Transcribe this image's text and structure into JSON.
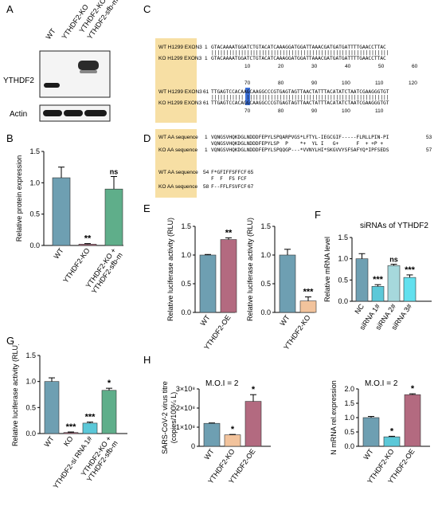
{
  "panels": {
    "A": "A",
    "B": "B",
    "C": "C",
    "D": "D",
    "E": "E",
    "F": "F",
    "G": "G",
    "H": "H"
  },
  "blot": {
    "lanes": [
      "WT",
      "YTHDF2-KO",
      "YTHDF2-KO +\nYTHDF2-sfb-m"
    ],
    "lane_labels": [
      "WT",
      "YTHDF2-KO",
      "YTHDF2-KO +",
      "YTHDF2-sfb-m"
    ],
    "bands": [
      "YTHDF2",
      "Actin"
    ]
  },
  "chart_data": [
    {
      "id": "B",
      "type": "bar",
      "categories": [
        "WT",
        "YTHDF2-KO",
        "YTHDF2-KO +\nYTHDF2-sfb-m"
      ],
      "values": [
        1.08,
        0.02,
        0.9
      ],
      "errors": [
        0.17,
        0.01,
        0.2
      ],
      "significance": [
        "",
        "**",
        "ns"
      ],
      "ylabel": "Relative protein expression",
      "ylim": [
        0,
        1.5
      ],
      "yticks": [
        "0.0",
        "0.5",
        "1.0",
        "1.5"
      ],
      "colors": [
        "#6e9fb2",
        "#b36a80",
        "#5fae8a"
      ]
    },
    {
      "id": "E1",
      "type": "bar",
      "categories": [
        "WT",
        "YTHDF2-OE"
      ],
      "values": [
        1.0,
        1.27
      ],
      "errors": [
        0.01,
        0.03
      ],
      "significance": [
        "",
        "**"
      ],
      "ylabel": "Relative luciferase activity (RLU)",
      "ylim": [
        0,
        1.5
      ],
      "yticks": [
        "0.0",
        "0.5",
        "1.0",
        "1.5"
      ],
      "colors": [
        "#6e9fb2",
        "#b36a80"
      ]
    },
    {
      "id": "E2",
      "type": "bar",
      "categories": [
        "WT",
        "YTHDF2-KO"
      ],
      "values": [
        1.0,
        0.2
      ],
      "errors": [
        0.1,
        0.07
      ],
      "significance": [
        "",
        "***"
      ],
      "ylabel": "Relative luciferase activity (RLU)",
      "ylim": [
        0,
        1.5
      ],
      "yticks": [
        "0.0",
        "0.5",
        "1.0",
        "1.5"
      ],
      "colors": [
        "#6e9fb2",
        "#f2c39c"
      ]
    },
    {
      "id": "F",
      "type": "bar",
      "title": "siRNAs of YTHDF2",
      "categories": [
        "NC",
        "siRNA 1#",
        "siRNA 2#",
        "siRNA 3#"
      ],
      "values": [
        1.0,
        0.35,
        0.84,
        0.56
      ],
      "errors": [
        0.12,
        0.04,
        0.03,
        0.06
      ],
      "significance": [
        "",
        "***",
        "ns",
        "***"
      ],
      "ylabel": "Relative mRNA level",
      "ylim": [
        0,
        1.5
      ],
      "yticks": [
        "0.0",
        "0.5",
        "1.0",
        "1.5"
      ],
      "colors": [
        "#6e9fb2",
        "#5bc8d8",
        "#a6d8dc",
        "#62e0ee"
      ]
    },
    {
      "id": "G",
      "type": "bar",
      "categories": [
        "WT",
        "KO",
        "YTHDF2-si RNA 1#",
        "YTHDF2-KO +\nYTHDF2-sfb-m"
      ],
      "values": [
        1.0,
        0.02,
        0.2,
        0.83
      ],
      "errors": [
        0.07,
        0.01,
        0.02,
        0.04
      ],
      "significance": [
        "",
        "***",
        "***",
        "*"
      ],
      "ylabel": "Relative luciferase activity (RLU)",
      "ylim": [
        0,
        1.5
      ],
      "yticks": [
        "0.0",
        "0.5",
        "1.0",
        "1.5"
      ],
      "colors": [
        "#6e9fb2",
        "#b36a80",
        "#5bc8d8",
        "#5fae8a"
      ]
    },
    {
      "id": "H1",
      "type": "bar",
      "title": "M.O.I = 2",
      "categories": [
        "WT",
        "YTHDF2-KO",
        "YTHDF2-OE"
      ],
      "values": [
        120000000.0,
        60000000.0,
        235000000.0
      ],
      "errors": [
        2000000.0,
        2000000.0,
        35000000.0
      ],
      "significance": [
        "",
        "*",
        "*"
      ],
      "ylabel": "SARS-CoV-2 virus titre (copies/100¼ L)",
      "ylim": [
        0,
        300000000.0
      ],
      "yticks": [
        "0",
        "1×10⁸",
        "2×10⁸",
        "3×10⁸"
      ],
      "colors": [
        "#6e9fb2",
        "#f2c39c",
        "#b36a80"
      ]
    },
    {
      "id": "H2",
      "type": "bar",
      "title": "M.O.I = 2",
      "categories": [
        "WT",
        "YTHDF2-KO",
        "YTHDF2-OE"
      ],
      "values": [
        1.0,
        0.33,
        1.8
      ],
      "errors": [
        0.04,
        0.02,
        0.03
      ],
      "significance": [
        "",
        "*",
        "*"
      ],
      "ylabel": "N mRNA rel.expression",
      "ylim": [
        0,
        2.0
      ],
      "yticks": [
        "0.0",
        "0.5",
        "1.0",
        "1.5",
        "2.0"
      ],
      "colors": [
        "#6e9fb2",
        "#5bc8d8",
        "#b36a80"
      ]
    }
  ],
  "alignment_C": {
    "rows": [
      {
        "label": "WT H1299 EXON3",
        "start": "1",
        "seq": "GTACAAAATGGATCTGTACATCAAAGGATGGATTAAACGATGATGATTTTGAACCTTAC"
      },
      {
        "label": "KO H1299 EXON3",
        "start": "1",
        "seq": "GTACAAAATGGATCTGTACATCAAAGGATGGATTAAACGATGATGATTTTGAACCTTAC"
      },
      {
        "label": "WT H1299 EXON3",
        "start": "61",
        "seq": "TTGAGTCCACAAGCAAGGCCCGTGAGTAGTTAACTATTTACATATCTAATCGAAGGGTGT"
      },
      {
        "label": "KO H1299 EXON3",
        "start": "61",
        "seq": "TTGAGTCCACAGGCAAGGCCCGTGAGTAGTTAACTATTTACATATCTAATCGAAGGGTGT"
      }
    ],
    "ticks_top": [
      "10",
      "20",
      "30",
      "40",
      "50",
      "60"
    ],
    "ticks_mid": [
      "70",
      "80",
      "90",
      "100",
      "110",
      "120"
    ],
    "ticks_bot": [
      "70",
      "80",
      "90",
      "100",
      "110"
    ]
  },
  "alignment_D": {
    "rows": [
      {
        "label": "WT AA sequence",
        "start": "1",
        "seq": "VQNGSVHQKDGLNDDDFEPYLSPQARPVGS*LFTYL-IEGCGIF-----FLRLLPIN-PI",
        "end": "53"
      },
      {
        "label": "",
        "start": "",
        "seq": "VQNGSVHQKDGLNDDDFEPYLSP  P    *+  YL I   G+      F  + +P +",
        "end": ""
      },
      {
        "label": "KO AA sequence",
        "start": "1",
        "seq": "VQNGSVHQKDGLNDDDFEPYLSPQQGP---*VVNYLHI*SKGVVYSFSAFYQ*IPFSEDS",
        "end": "57"
      },
      {
        "label": "WT AA sequence",
        "start": "54",
        "seq": "F*GFIFFSFFCF",
        "end": "65"
      },
      {
        "label": "",
        "start": "",
        "seq": "F  F  FS FCF",
        "end": ""
      },
      {
        "label": "KO AA sequence",
        "start": "58",
        "seq": "F--FFLFSVFCF",
        "end": "67"
      }
    ]
  }
}
